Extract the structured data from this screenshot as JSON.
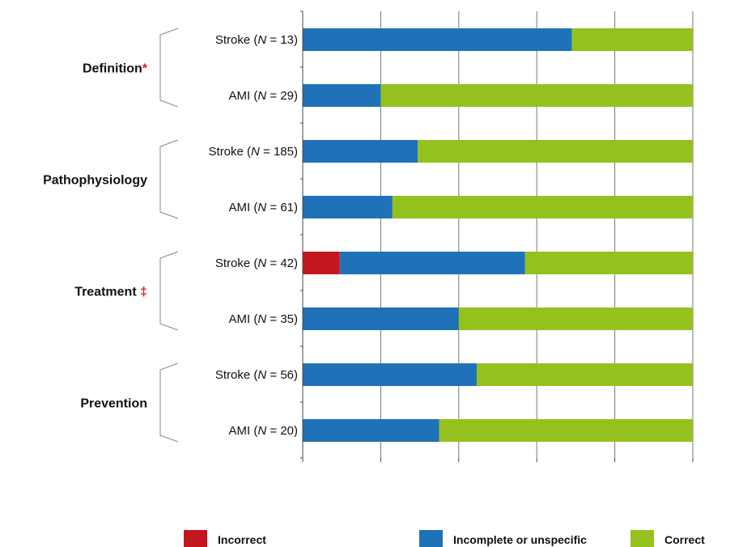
{
  "chart_data": {
    "type": "bar",
    "orientation": "horizontal",
    "stacked": true,
    "normalized": true,
    "xlim": [
      0,
      100
    ],
    "grid": true,
    "legend_position": "bottom",
    "colors": {
      "Incorrect": "#c4161f",
      "Incomplete or unspecific": "#1f72b8",
      "Correct": "#95c11f"
    },
    "groups": [
      {
        "label": "Definition",
        "mark": "*",
        "rows": [
          {
            "label_pre": "Stroke (",
            "n_symbol": "N",
            "label_post": " = 13)",
            "values": {
              "Incorrect": 0,
              "Incomplete or unspecific": 69,
              "Correct": 31
            }
          },
          {
            "label_pre": "AMI (",
            "n_symbol": "N",
            "label_post": " = 29)",
            "values": {
              "Incorrect": 0,
              "Incomplete or unspecific": 20,
              "Correct": 80
            }
          }
        ]
      },
      {
        "label": "Pathophysiology",
        "mark": "",
        "rows": [
          {
            "label_pre": "Stroke (",
            "n_symbol": "N",
            "label_post": " = 185)",
            "values": {
              "Incorrect": 0,
              "Incomplete or unspecific": 29.5,
              "Correct": 70.5
            }
          },
          {
            "label_pre": "AMI (",
            "n_symbol": "N",
            "label_post": " = 61)",
            "values": {
              "Incorrect": 0,
              "Incomplete or unspecific": 23,
              "Correct": 77
            }
          }
        ]
      },
      {
        "label": "Treatment",
        "mark": "‡",
        "rows": [
          {
            "label_pre": "Stroke (",
            "n_symbol": "N",
            "label_post": " = 42)",
            "values": {
              "Incorrect": 9.5,
              "Incomplete or unspecific": 47.5,
              "Correct": 43
            }
          },
          {
            "label_pre": "AMI (",
            "n_symbol": "N",
            "label_post": " = 35)",
            "values": {
              "Incorrect": 0,
              "Incomplete or unspecific": 40,
              "Correct": 60
            }
          }
        ]
      },
      {
        "label": "Prevention",
        "mark": "",
        "rows": [
          {
            "label_pre": "Stroke (",
            "n_symbol": "N",
            "label_post": " = 56)",
            "values": {
              "Incorrect": 0,
              "Incomplete or unspecific": 44.6,
              "Correct": 55.4
            }
          },
          {
            "label_pre": "AMI (",
            "n_symbol": "N",
            "label_post": " = 20)",
            "values": {
              "Incorrect": 0,
              "Incomplete or unspecific": 35,
              "Correct": 65
            }
          }
        ]
      }
    ],
    "series": [
      {
        "name": "Incorrect"
      },
      {
        "name": "Incomplete or unspecific"
      },
      {
        "name": "Correct"
      }
    ]
  }
}
